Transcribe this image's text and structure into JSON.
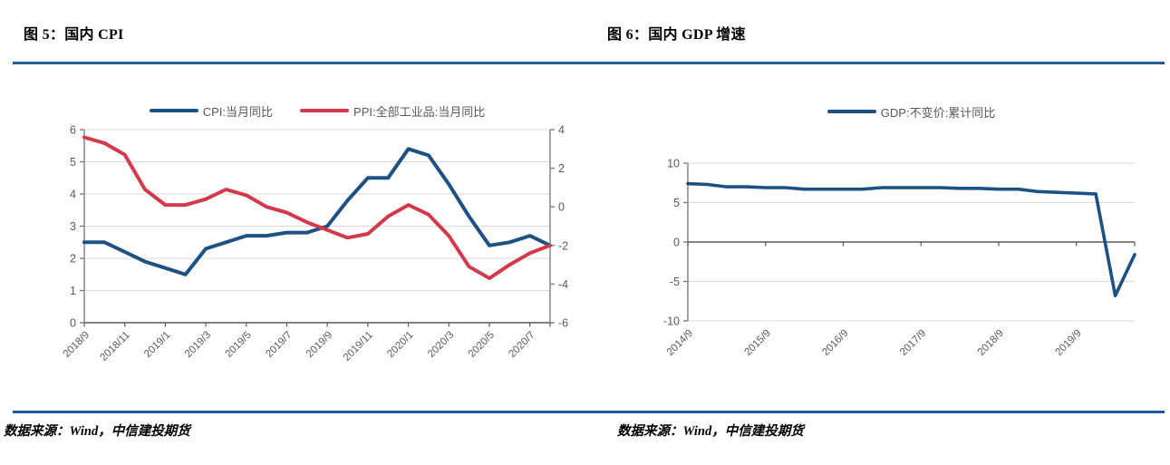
{
  "colors": {
    "blue": "#1D5183",
    "red": "#D23A4C",
    "rule": "#1F5C99",
    "grid": "#D9D9D9",
    "axis": "#7F7F7F",
    "baseline": "#595959",
    "tick_text": "#595959",
    "title_text": "#000000"
  },
  "figures": [
    {
      "title": "图 5：国内 CPI",
      "source": "数据来源：Wind，中信建投期货"
    },
    {
      "title": "图 6：国内 GDP 增速",
      "source": "数据来源：Wind，中信建投期货"
    }
  ],
  "chart_data": [
    {
      "type": "line",
      "title": "国内 CPI",
      "x": [
        "2018/9",
        "2018/10",
        "2018/11",
        "2018/12",
        "2019/1",
        "2019/2",
        "2019/3",
        "2019/4",
        "2019/5",
        "2019/6",
        "2019/7",
        "2019/8",
        "2019/9",
        "2019/10",
        "2019/11",
        "2019/12",
        "2020/1",
        "2020/2",
        "2020/3",
        "2020/4",
        "2020/5",
        "2020/6",
        "2020/7",
        "2020/8"
      ],
      "x_tick_labels": [
        "2018/9",
        "2018/11",
        "2019/1",
        "2019/3",
        "2019/5",
        "2019/7",
        "2019/9",
        "2019/11",
        "2020/1",
        "2020/3",
        "2020/5",
        "2020/7"
      ],
      "x_label_every": 2,
      "series": [
        {
          "name": "CPI:当月同比",
          "axis": "left",
          "color_key": "blue",
          "values": [
            2.5,
            2.5,
            2.2,
            1.9,
            1.7,
            1.5,
            2.3,
            2.5,
            2.7,
            2.7,
            2.8,
            2.8,
            3.0,
            3.8,
            4.5,
            4.5,
            5.4,
            5.2,
            4.3,
            3.3,
            2.4,
            2.5,
            2.7,
            2.4
          ]
        },
        {
          "name": "PPI:全部工业品:当月同比",
          "axis": "right",
          "color_key": "red",
          "values": [
            3.6,
            3.3,
            2.7,
            0.9,
            0.1,
            0.1,
            0.4,
            0.9,
            0.6,
            0.0,
            -0.3,
            -0.8,
            -1.2,
            -1.6,
            -1.4,
            -0.5,
            0.1,
            -0.4,
            -1.5,
            -3.1,
            -3.7,
            -3.0,
            -2.4,
            -2.0
          ]
        }
      ],
      "left_axis": {
        "min": 0,
        "max": 6,
        "ticks": [
          0,
          1,
          2,
          3,
          4,
          5,
          6
        ]
      },
      "right_axis": {
        "min": -6,
        "max": 4,
        "ticks": [
          -6,
          -4,
          -2,
          0,
          2,
          4
        ]
      },
      "baseline": 0,
      "grid": true,
      "legend_position": "top"
    },
    {
      "type": "line",
      "title": "国内 GDP 增速",
      "x": [
        "2014/9",
        "2014/12",
        "2015/3",
        "2015/6",
        "2015/9",
        "2015/12",
        "2016/3",
        "2016/6",
        "2016/9",
        "2016/12",
        "2017/3",
        "2017/6",
        "2017/9",
        "2017/12",
        "2018/3",
        "2018/6",
        "2018/9",
        "2018/12",
        "2019/3",
        "2019/6",
        "2019/9",
        "2019/12",
        "2020/3",
        "2020/6"
      ],
      "x_tick_labels": [
        "2014/9",
        "2015/9",
        "2016/9",
        "2017/9",
        "2018/9",
        "2019/9"
      ],
      "x_label_every": 4,
      "series": [
        {
          "name": "GDP:不变价:累计同比",
          "axis": "left",
          "color_key": "blue",
          "values": [
            7.4,
            7.3,
            7.0,
            7.0,
            6.9,
            6.9,
            6.7,
            6.7,
            6.7,
            6.7,
            6.9,
            6.9,
            6.9,
            6.9,
            6.8,
            6.8,
            6.7,
            6.7,
            6.4,
            6.3,
            6.2,
            6.1,
            -6.8,
            -1.6
          ]
        }
      ],
      "left_axis": {
        "min": -10,
        "max": 10,
        "ticks": [
          -10,
          -5,
          0,
          5,
          10
        ]
      },
      "baseline": 0,
      "grid": true,
      "legend_position": "top"
    }
  ]
}
